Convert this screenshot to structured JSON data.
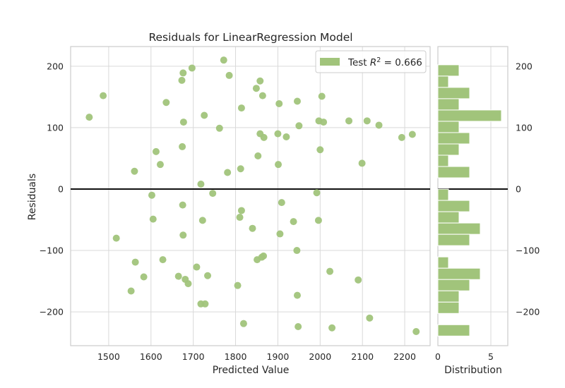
{
  "chart_data": [
    {
      "type": "scatter",
      "title": "Residuals for LinearRegression Model",
      "xlabel": "Predicted Value",
      "ylabel": "Residuals",
      "xlim": [
        1410,
        2260
      ],
      "ylim": [
        -255,
        232
      ],
      "x_ticks": [
        1500,
        1600,
        1700,
        1800,
        1900,
        2000,
        2100,
        2200
      ],
      "y_ticks": [
        -200,
        -100,
        0,
        100,
        200
      ],
      "grid": true,
      "zero_line": 0,
      "legend": {
        "label": "Test R² = 0.666",
        "placement": "top-right"
      },
      "color": "#a1c47b",
      "series": [
        {
          "name": "Test R² = 0.666",
          "points": [
            [
              1454,
              117
            ],
            [
              1487,
              152
            ],
            [
              1518,
              -80
            ],
            [
              1553,
              -166
            ],
            [
              1561,
              29
            ],
            [
              1563,
              -119
            ],
            [
              1583,
              -143
            ],
            [
              1602,
              -10
            ],
            [
              1605,
              -49
            ],
            [
              1612,
              61
            ],
            [
              1622,
              40
            ],
            [
              1628,
              -115
            ],
            [
              1636,
              141
            ],
            [
              1665,
              -142
            ],
            [
              1673,
              177
            ],
            [
              1674,
              69
            ],
            [
              1675,
              -26
            ],
            [
              1676,
              -75
            ],
            [
              1676,
              189
            ],
            [
              1677,
              109
            ],
            [
              1681,
              -147
            ],
            [
              1688,
              -154
            ],
            [
              1697,
              197
            ],
            [
              1708,
              -127
            ],
            [
              1718,
              8
            ],
            [
              1718,
              -187
            ],
            [
              1722,
              -51
            ],
            [
              1726,
              120
            ],
            [
              1728,
              -187
            ],
            [
              1734,
              -141
            ],
            [
              1746,
              -7
            ],
            [
              1762,
              99
            ],
            [
              1772,
              210
            ],
            [
              1781,
              27
            ],
            [
              1785,
              185
            ],
            [
              1805,
              -157
            ],
            [
              1810,
              -46
            ],
            [
              1812,
              33
            ],
            [
              1814,
              -35
            ],
            [
              1814,
              132
            ],
            [
              1819,
              -219
            ],
            [
              1840,
              -64
            ],
            [
              1849,
              164
            ],
            [
              1851,
              -115
            ],
            [
              1853,
              54
            ],
            [
              1858,
              176
            ],
            [
              1858,
              90
            ],
            [
              1862,
              -111
            ],
            [
              1864,
              152
            ],
            [
              1866,
              -109
            ],
            [
              1867,
              84
            ],
            [
              1900,
              90
            ],
            [
              1901,
              40
            ],
            [
              1903,
              139
            ],
            [
              1905,
              -73
            ],
            [
              1909,
              -22
            ],
            [
              1920,
              85
            ],
            [
              1937,
              -53
            ],
            [
              1945,
              -100
            ],
            [
              1946,
              -173
            ],
            [
              1946,
              143
            ],
            [
              1948,
              -224
            ],
            [
              1950,
              103
            ],
            [
              1992,
              -6
            ],
            [
              1996,
              -51
            ],
            [
              1997,
              111
            ],
            [
              2000,
              64
            ],
            [
              2004,
              151
            ],
            [
              2008,
              109
            ],
            [
              2023,
              -134
            ],
            [
              2028,
              -226
            ],
            [
              2068,
              111
            ],
            [
              2090,
              -148
            ],
            [
              2099,
              42
            ],
            [
              2111,
              111
            ],
            [
              2117,
              -210
            ],
            [
              2139,
              104
            ],
            [
              2193,
              84
            ],
            [
              2218,
              89
            ],
            [
              2227,
              -232
            ]
          ]
        }
      ]
    },
    {
      "type": "bar",
      "orientation": "horizontal",
      "xlabel": "Distribution",
      "x_ticks": [
        0,
        5
      ],
      "xlim": [
        0,
        6.6
      ],
      "bin_width": 18.4,
      "bins": [
        {
          "from": 183.9,
          "count": 2
        },
        {
          "from": 165.5,
          "count": 1
        },
        {
          "from": 147.1,
          "count": 3
        },
        {
          "from": 128.7,
          "count": 2
        },
        {
          "from": 110.3,
          "count": 6
        },
        {
          "from": 91.9,
          "count": 2
        },
        {
          "from": 73.5,
          "count": 3
        },
        {
          "from": 55.1,
          "count": 2
        },
        {
          "from": 36.7,
          "count": 1
        },
        {
          "from": 18.3,
          "count": 3
        },
        {
          "from": -18.5,
          "count": 1
        },
        {
          "from": -36.9,
          "count": 3
        },
        {
          "from": -55.3,
          "count": 2
        },
        {
          "from": -73.7,
          "count": 4
        },
        {
          "from": -92.1,
          "count": 3
        },
        {
          "from": -128.9,
          "count": 1
        },
        {
          "from": -147.3,
          "count": 4
        },
        {
          "from": -165.7,
          "count": 3
        },
        {
          "from": -184.1,
          "count": 2
        },
        {
          "from": -202.5,
          "count": 2
        },
        {
          "from": -239.3,
          "count": 3
        }
      ]
    }
  ]
}
